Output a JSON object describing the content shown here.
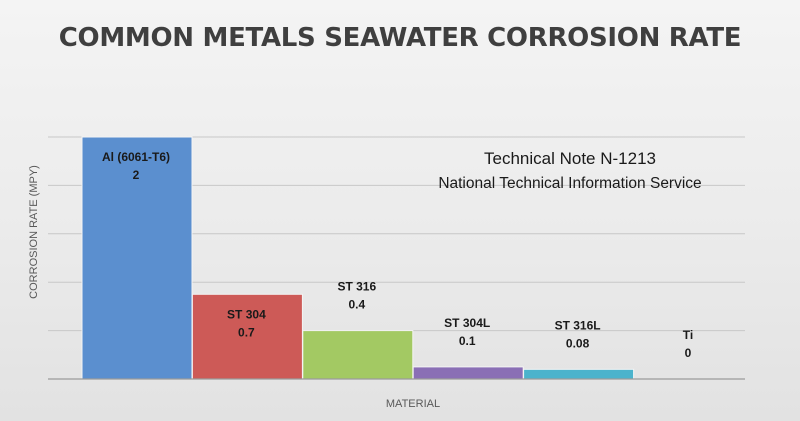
{
  "chart_data": {
    "type": "bar",
    "title": "COMMON METALS SEAWATER CORROSION RATE",
    "xlabel": "MATERIAL",
    "ylabel": "CORROSION RATE (MPY)",
    "categories": [
      "Al (6061-T6)",
      "ST 304",
      "ST 316",
      "ST 304L",
      "ST 316L",
      "Ti"
    ],
    "values": [
      2,
      0.7,
      0.4,
      0.1,
      0.08,
      0
    ],
    "value_labels": [
      "2",
      "0.7",
      "0.4",
      "0.1",
      "0.08",
      "0"
    ],
    "bar_colors": [
      "#5b8fcf",
      "#cd5a57",
      "#a3c963",
      "#8a6fb5",
      "#4bb3cc",
      "#f29b4a"
    ],
    "ylim": [
      0,
      2
    ],
    "y_gridline_step": 0.4,
    "show_y_tick_labels": false,
    "grid": true,
    "gridline_color": "#c8c8c8",
    "axis_color": "#9a9a9a",
    "annotations": [
      "Technical Note N-1213",
      "National Technical Information Service"
    ]
  }
}
